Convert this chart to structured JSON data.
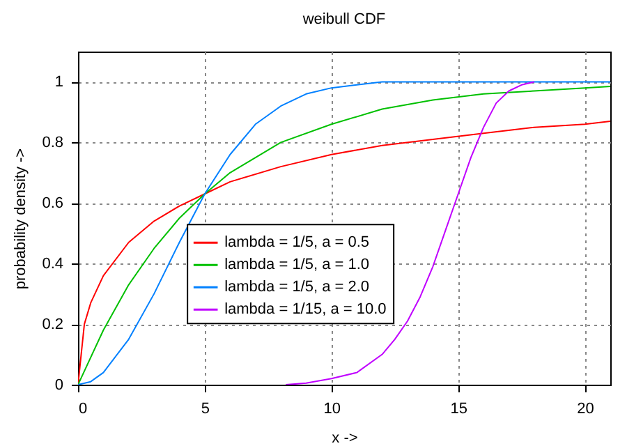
{
  "chart_data": {
    "type": "line",
    "title": "weibull CDF",
    "xlabel": "x ->",
    "ylabel": "probability density ->",
    "xlim": [
      0,
      21
    ],
    "ylim": [
      0,
      1.1
    ],
    "xticks": [
      0,
      5,
      10,
      15,
      20
    ],
    "yticks": [
      0,
      0.2,
      0.4,
      0.6,
      0.8,
      1
    ],
    "grid": true,
    "legend": "center",
    "line_style": "solid",
    "series": [
      {
        "name": "lambda = 1/5, a = 0.5",
        "color": "#ff0000",
        "x": [
          0,
          0.25,
          0.5,
          1,
          2,
          3,
          4,
          5,
          6,
          8,
          10,
          12,
          14,
          16,
          18,
          20,
          21
        ],
        "values": [
          0,
          0.2,
          0.27,
          0.36,
          0.47,
          0.54,
          0.59,
          0.63,
          0.67,
          0.72,
          0.76,
          0.79,
          0.81,
          0.83,
          0.85,
          0.86,
          0.87
        ]
      },
      {
        "name": "lambda = 1/5, a = 1.0",
        "color": "#00c000",
        "x": [
          0,
          1,
          2,
          3,
          4,
          5,
          6,
          8,
          10,
          12,
          14,
          16,
          18,
          20,
          21
        ],
        "values": [
          0,
          0.18,
          0.33,
          0.45,
          0.55,
          0.63,
          0.7,
          0.8,
          0.86,
          0.91,
          0.94,
          0.96,
          0.97,
          0.98,
          0.985
        ]
      },
      {
        "name": "lambda = 1/5, a = 2.0",
        "color": "#0080ff",
        "x": [
          0,
          0.5,
          1,
          2,
          3,
          4,
          5,
          6,
          7,
          8,
          9,
          10,
          11,
          12,
          14,
          21
        ],
        "values": [
          0,
          0.01,
          0.04,
          0.15,
          0.3,
          0.47,
          0.63,
          0.76,
          0.86,
          0.92,
          0.96,
          0.98,
          0.99,
          1,
          1,
          1
        ]
      },
      {
        "name": "lambda = 1/15, a = 10.0",
        "color": "#c000ff",
        "x": [
          8.2,
          9,
          10,
          11,
          12,
          12.5,
          13,
          13.5,
          14,
          14.5,
          15,
          15.5,
          16,
          16.5,
          17,
          17.5,
          18
        ],
        "values": [
          0,
          0.005,
          0.02,
          0.04,
          0.1,
          0.15,
          0.21,
          0.29,
          0.39,
          0.51,
          0.63,
          0.75,
          0.85,
          0.93,
          0.97,
          0.99,
          1
        ]
      }
    ]
  }
}
